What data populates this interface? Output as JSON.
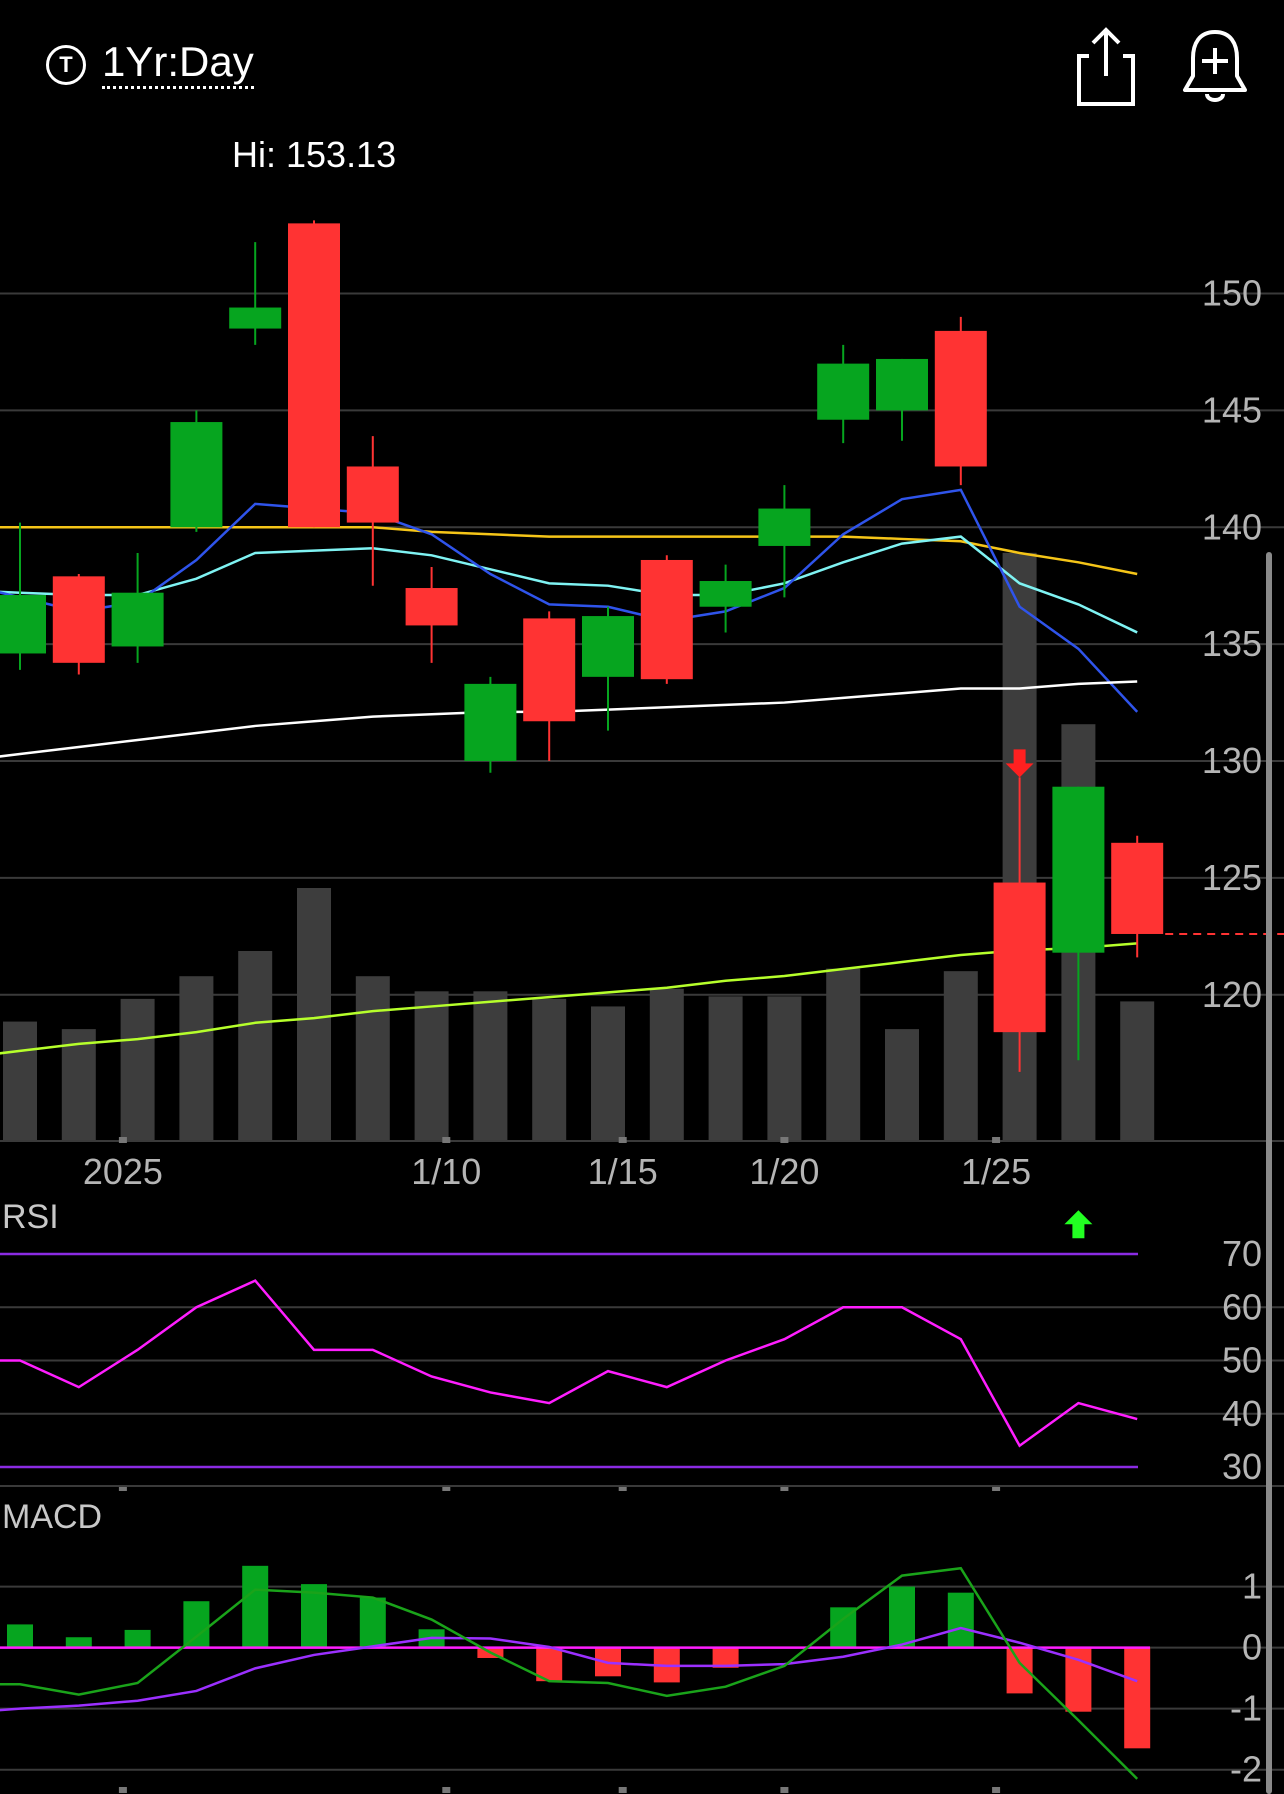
{
  "header": {
    "period_icon": "T",
    "period_label": "1Yr:Day",
    "share_icon": "share-icon",
    "alert_icon": "bell-plus-icon",
    "hi_label": "Hi: 153.13"
  },
  "chart_data": [
    {
      "type": "candlestick",
      "y_ticks": [
        "150",
        "145",
        "140",
        "135",
        "130",
        "125",
        "120"
      ],
      "ylim": [
        114,
        154
      ],
      "x_ticks": [
        {
          "label": "2025",
          "index": 1.75
        },
        {
          "label": "1/10",
          "index": 7.25
        },
        {
          "label": "1/15",
          "index": 10.25
        },
        {
          "label": "1/20",
          "index": 13
        },
        {
          "label": "1/25",
          "index": 16.6
        }
      ],
      "candles": [
        {
          "open": 134.6,
          "close": 137.1,
          "high": 140.2,
          "low": 133.9
        },
        {
          "open": 137.9,
          "close": 134.2,
          "high": 138.0,
          "low": 133.7
        },
        {
          "open": 134.9,
          "close": 137.2,
          "high": 138.9,
          "low": 134.2
        },
        {
          "open": 140.0,
          "close": 144.5,
          "high": 145.0,
          "low": 139.8
        },
        {
          "open": 148.5,
          "close": 149.4,
          "high": 152.2,
          "low": 147.8
        },
        {
          "open": 153.0,
          "close": 140.0,
          "high": 153.13,
          "low": 140.0
        },
        {
          "open": 142.6,
          "close": 140.2,
          "high": 143.9,
          "low": 137.5
        },
        {
          "open": 137.4,
          "close": 135.8,
          "high": 138.3,
          "low": 134.2
        },
        {
          "open": 130.0,
          "close": 133.3,
          "high": 133.6,
          "low": 129.5
        },
        {
          "open": 136.1,
          "close": 131.7,
          "high": 136.4,
          "low": 130.0
        },
        {
          "open": 133.6,
          "close": 136.2,
          "high": 136.6,
          "low": 131.3
        },
        {
          "open": 138.6,
          "close": 133.5,
          "high": 138.8,
          "low": 133.3
        },
        {
          "open": 136.6,
          "close": 137.7,
          "high": 138.4,
          "low": 135.5
        },
        {
          "open": 139.2,
          "close": 140.8,
          "high": 141.8,
          "low": 137.0
        },
        {
          "open": 144.6,
          "close": 147.0,
          "high": 147.8,
          "low": 143.6
        },
        {
          "open": 145.0,
          "close": 147.2,
          "high": 147.2,
          "low": 143.7
        },
        {
          "open": 148.4,
          "close": 142.6,
          "high": 149.0,
          "low": 141.8
        },
        {
          "open": 124.8,
          "close": 118.4,
          "high": 129.3,
          "low": 116.7
        },
        {
          "open": 121.8,
          "close": 128.9,
          "high": 128.9,
          "low": 117.2
        },
        {
          "open": 126.5,
          "close": 122.6,
          "high": 126.8,
          "low": 121.6
        }
      ],
      "volumes": [
        0.47,
        0.44,
        0.56,
        0.65,
        0.75,
        1.0,
        0.65,
        0.59,
        0.59,
        0.56,
        0.53,
        0.6,
        0.57,
        0.57,
        0.68,
        0.44,
        0.67,
        2.33,
        1.65,
        0.55
      ],
      "moving_averages": [
        {
          "color": "#f5c518",
          "values": [
            140.0,
            140.0,
            140.0,
            140.0,
            140.0,
            140.0,
            140.0,
            139.8,
            139.7,
            139.6,
            139.6,
            139.6,
            139.6,
            139.6,
            139.6,
            139.5,
            139.4,
            138.9,
            138.5,
            138.0
          ]
        },
        {
          "color": "#7ff3f3",
          "values": [
            137.2,
            137.1,
            137.1,
            137.8,
            138.9,
            139.0,
            139.1,
            138.8,
            138.2,
            137.6,
            137.5,
            137.1,
            137.1,
            137.6,
            138.5,
            139.3,
            139.6,
            137.6,
            136.7,
            135.5
          ]
        },
        {
          "color": "#2f54eb",
          "values": [
            137.0,
            136.4,
            136.8,
            138.6,
            141.0,
            140.8,
            140.6,
            139.7,
            138.0,
            136.7,
            136.6,
            136.0,
            136.4,
            137.4,
            139.7,
            141.2,
            141.6,
            136.6,
            134.8,
            132.1
          ]
        },
        {
          "color": "#ffffff",
          "values": [
            130.3,
            130.6,
            130.9,
            131.2,
            131.5,
            131.7,
            131.9,
            132.0,
            132.1,
            132.1,
            132.2,
            132.3,
            132.4,
            132.5,
            132.7,
            132.9,
            133.1,
            133.1,
            133.3,
            133.4
          ]
        },
        {
          "color": "#b6ff2b",
          "values": [
            117.6,
            117.9,
            118.1,
            118.4,
            118.8,
            119.0,
            119.3,
            119.5,
            119.7,
            119.9,
            120.1,
            120.3,
            120.6,
            120.8,
            121.1,
            121.4,
            121.7,
            121.9,
            122.0,
            122.2
          ]
        }
      ],
      "last_price": 122.6,
      "markers": [
        {
          "index": 17,
          "direction": "down",
          "value": 129.3,
          "color": "#ff2020"
        },
        {
          "index": 18,
          "direction": "up",
          "value": 117.2,
          "color": "#22ff22"
        }
      ]
    },
    {
      "type": "line",
      "title": "RSI",
      "y_ticks": [
        "70",
        "60",
        "50",
        "40",
        "30"
      ],
      "ylim": [
        30,
        70
      ],
      "reference_lines": [
        70,
        30
      ],
      "color": "#ff1eff",
      "values": [
        50,
        45,
        52,
        60,
        65,
        52,
        52,
        47,
        44,
        42,
        48,
        45,
        50,
        54,
        60,
        60,
        54,
        34,
        42,
        39
      ]
    },
    {
      "type": "bar",
      "title": "MACD",
      "y_ticks": [
        "1",
        "0",
        "-1",
        "-2"
      ],
      "ylim": [
        -2.3,
        1.55
      ],
      "histogram": [
        0.38,
        0.17,
        0.29,
        0.76,
        1.34,
        1.04,
        0.82,
        0.3,
        -0.17,
        -0.55,
        -0.47,
        -0.57,
        -0.33,
        0.0,
        0.66,
        1.0,
        0.9,
        -0.75,
        -1.05,
        -1.65
      ],
      "macd_line": {
        "color": "#1aa31a",
        "values": [
          -0.6,
          -0.77,
          -0.58,
          0.18,
          0.95,
          0.9,
          0.82,
          0.46,
          -0.08,
          -0.55,
          -0.58,
          -0.79,
          -0.64,
          -0.3,
          0.47,
          1.18,
          1.3,
          -0.25,
          -1.19,
          -2.15
        ]
      },
      "signal_line": {
        "color": "#9b30ff",
        "values": [
          -1.0,
          -0.95,
          -0.87,
          -0.71,
          -0.34,
          -0.12,
          0.02,
          0.16,
          0.15,
          0.01,
          -0.25,
          -0.3,
          -0.3,
          -0.27,
          -0.15,
          0.05,
          0.32,
          0.08,
          -0.2,
          -0.55
        ]
      }
    }
  ]
}
